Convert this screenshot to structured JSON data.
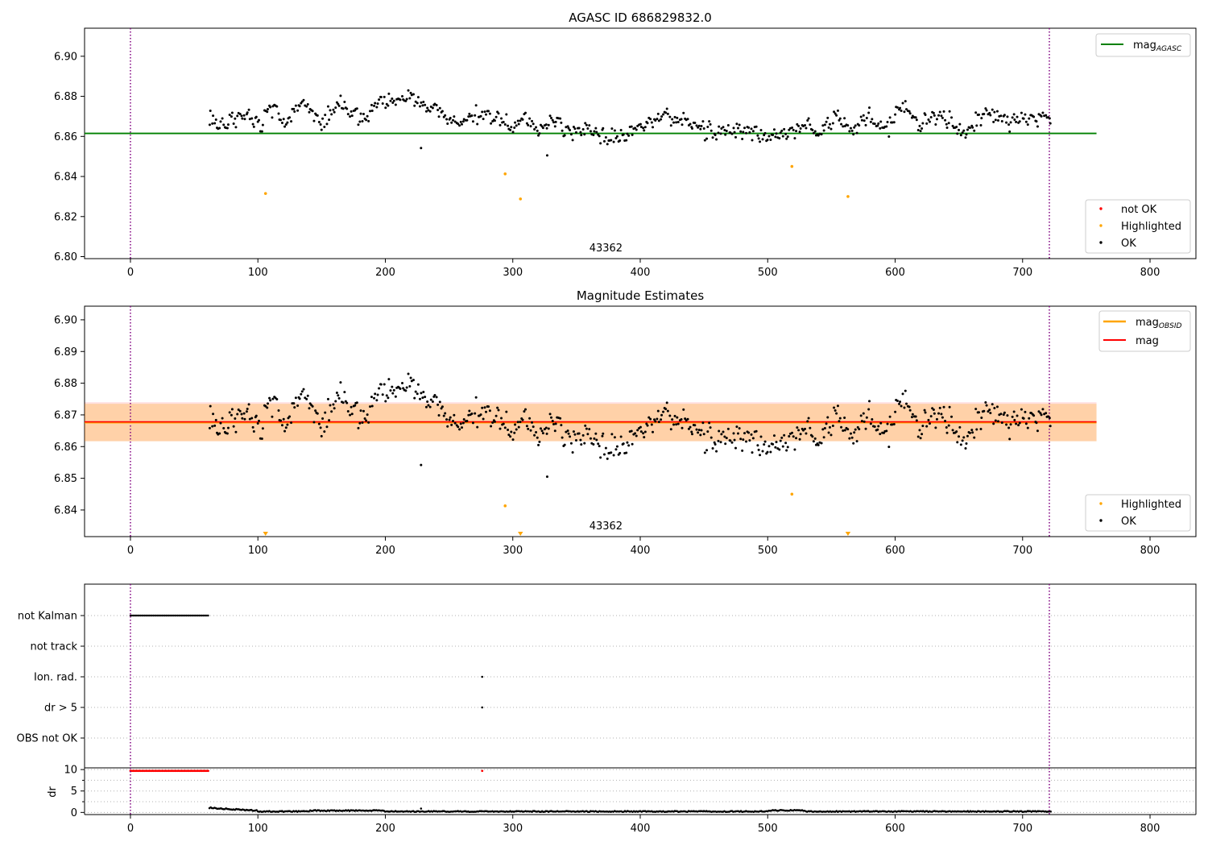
{
  "chart_data": [
    {
      "type": "scatter",
      "title": "AGASC ID 686829832.0",
      "xlim": [
        -36,
        836
      ],
      "ylim": [
        6.799,
        6.914
      ],
      "yticks": [
        "6.80",
        "6.82",
        "6.84",
        "6.86",
        "6.88",
        "6.90"
      ],
      "xticks": [
        "0",
        "100",
        "200",
        "300",
        "400",
        "500",
        "600",
        "700",
        "800"
      ],
      "obsid_label": "43362",
      "obsid_label_x": 360,
      "obs_bounds": [
        0,
        721
      ],
      "mag_line": {
        "label_main": "mag",
        "label_sub": "AGASC",
        "value": 6.8615,
        "xmin": -36,
        "xmax": 758,
        "color": "#008000"
      },
      "legend_points": [
        "not OK",
        "Highlighted",
        "OK"
      ],
      "highlighted": {
        "x": [
          106,
          294,
          306,
          519,
          563
        ],
        "y": [
          6.8315,
          6.8413,
          6.8288,
          6.845,
          6.83
        ]
      },
      "ok_series": {
        "x_start": 62,
        "x_end": 722,
        "step": 1.0,
        "base": 6.8665,
        "knots": [
          [
            62,
            6.868
          ],
          [
            75,
            6.866
          ],
          [
            90,
            6.871
          ],
          [
            100,
            6.866
          ],
          [
            110,
            6.875
          ],
          [
            120,
            6.866
          ],
          [
            135,
            6.876
          ],
          [
            150,
            6.868
          ],
          [
            165,
            6.877
          ],
          [
            180,
            6.868
          ],
          [
            200,
            6.879
          ],
          [
            220,
            6.878
          ],
          [
            240,
            6.872
          ],
          [
            260,
            6.867
          ],
          [
            280,
            6.873
          ],
          [
            300,
            6.864
          ],
          [
            310,
            6.87
          ],
          [
            320,
            6.864
          ],
          [
            335,
            6.868
          ],
          [
            345,
            6.862
          ],
          [
            360,
            6.864
          ],
          [
            375,
            6.858
          ],
          [
            390,
            6.86
          ],
          [
            400,
            6.866
          ],
          [
            420,
            6.871
          ],
          [
            440,
            6.866
          ],
          [
            460,
            6.861
          ],
          [
            480,
            6.864
          ],
          [
            500,
            6.859
          ],
          [
            520,
            6.862
          ],
          [
            530,
            6.866
          ],
          [
            540,
            6.861
          ],
          [
            555,
            6.871
          ],
          [
            565,
            6.862
          ],
          [
            580,
            6.87
          ],
          [
            595,
            6.864
          ],
          [
            605,
            6.876
          ],
          [
            620,
            6.866
          ],
          [
            635,
            6.872
          ],
          [
            655,
            6.861
          ],
          [
            670,
            6.873
          ],
          [
            690,
            6.866
          ],
          [
            705,
            6.871
          ],
          [
            722,
            6.868
          ]
        ],
        "amp": 0.0035,
        "outliers": [
          [
            228,
            6.8542
          ],
          [
            327,
            6.8505
          ]
        ]
      }
    },
    {
      "type": "scatter",
      "title": "Magnitude Estimates",
      "xlim": [
        -36,
        836
      ],
      "ylim": [
        6.8316,
        6.9043
      ],
      "yticks": [
        "6.84",
        "6.85",
        "6.86",
        "6.87",
        "6.88",
        "6.89",
        "6.90"
      ],
      "xticks": [
        "0",
        "100",
        "200",
        "300",
        "400",
        "500",
        "600",
        "700",
        "800"
      ],
      "obsid_label": "43362",
      "obsid_label_x": 360,
      "obs_bounds": [
        0,
        721
      ],
      "mag_obsid": {
        "label_main": "mag",
        "label_sub": "OBSID",
        "value": 6.8676,
        "band": [
          6.8617,
          6.8735
        ],
        "xmin": -36,
        "xmax": 758,
        "color": "#ffa500"
      },
      "mag": {
        "label": "mag",
        "value": 6.8678,
        "band": [
          6.8617,
          6.874
        ],
        "color": "#ff0000"
      },
      "legend_points": [
        "Highlighted",
        "OK"
      ],
      "highlighted": {
        "x": [
          294,
          519
        ],
        "y": [
          6.8413,
          6.845
        ]
      },
      "offscale_markers_x": [
        106,
        306,
        563
      ]
    },
    {
      "type": "scatter",
      "categories": [
        "not Kalman",
        "not track",
        "Ion. rad.",
        "dr > 5",
        "OBS not OK"
      ],
      "flags": {
        "not Kalman": {
          "x_start": 0,
          "x_end": 61,
          "step": 1.0
        },
        "not track": {
          "x": []
        },
        "Ion. rad.": {
          "x": [
            276
          ]
        },
        "dr > 5": {
          "x": [
            276
          ]
        },
        "OBS not OK": {
          "x": []
        }
      },
      "obs_bounds": [
        0,
        721
      ],
      "xlim": [
        -36,
        836
      ]
    },
    {
      "type": "scatter",
      "ylabel": "dr",
      "yticks": [
        "0",
        "5",
        "10"
      ],
      "ylim": [
        -0.5,
        10.4
      ],
      "xticks": [
        "0",
        "100",
        "200",
        "300",
        "400",
        "500",
        "600",
        "700",
        "800"
      ],
      "xlim": [
        -36,
        836
      ],
      "clipped_red": {
        "x_start": 0,
        "x_end": 61,
        "step": 1.0,
        "extra_x": [
          276
        ],
        "y": 9.7
      },
      "dr_series": {
        "x_start": 62,
        "x_end": 722,
        "step": 1.0
      },
      "obs_bounds": [
        0,
        721
      ]
    }
  ]
}
